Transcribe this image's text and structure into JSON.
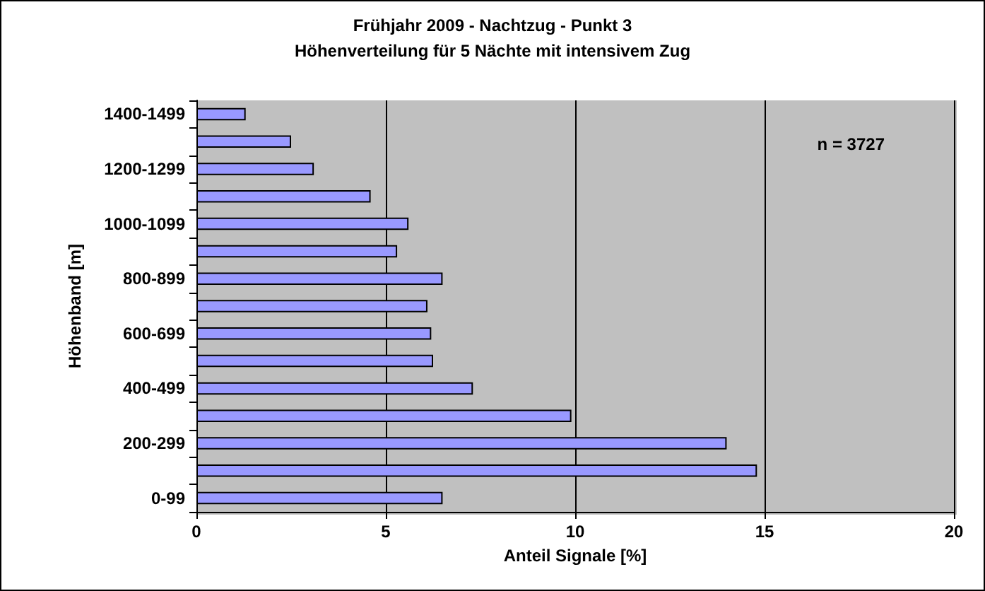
{
  "chart_data": {
    "type": "bar",
    "orientation": "horizontal",
    "title": "Frühjahr 2009 - Nachtzug - Punkt 3",
    "subtitle": "Höhenverteilung für 5 Nächte mit intensivem Zug",
    "xlabel": "Anteil Signale [%]",
    "ylabel": "Höhenband [m]",
    "categories": [
      "1400-1499",
      null,
      "1200-1299",
      null,
      "1000-1099",
      null,
      "800-899",
      null,
      "600-699",
      null,
      "400-499",
      null,
      "200-299",
      null,
      "0-99"
    ],
    "values": [
      1.3,
      2.5,
      3.1,
      4.6,
      5.6,
      5.3,
      6.5,
      6.1,
      6.2,
      6.25,
      7.3,
      9.9,
      14.0,
      14.8,
      6.5
    ],
    "color": "#9999ff",
    "xlim": [
      0,
      20
    ],
    "xticks": [
      0,
      5,
      10,
      15,
      20
    ],
    "grid": "x",
    "annotations": [
      "n = 3727"
    ]
  }
}
